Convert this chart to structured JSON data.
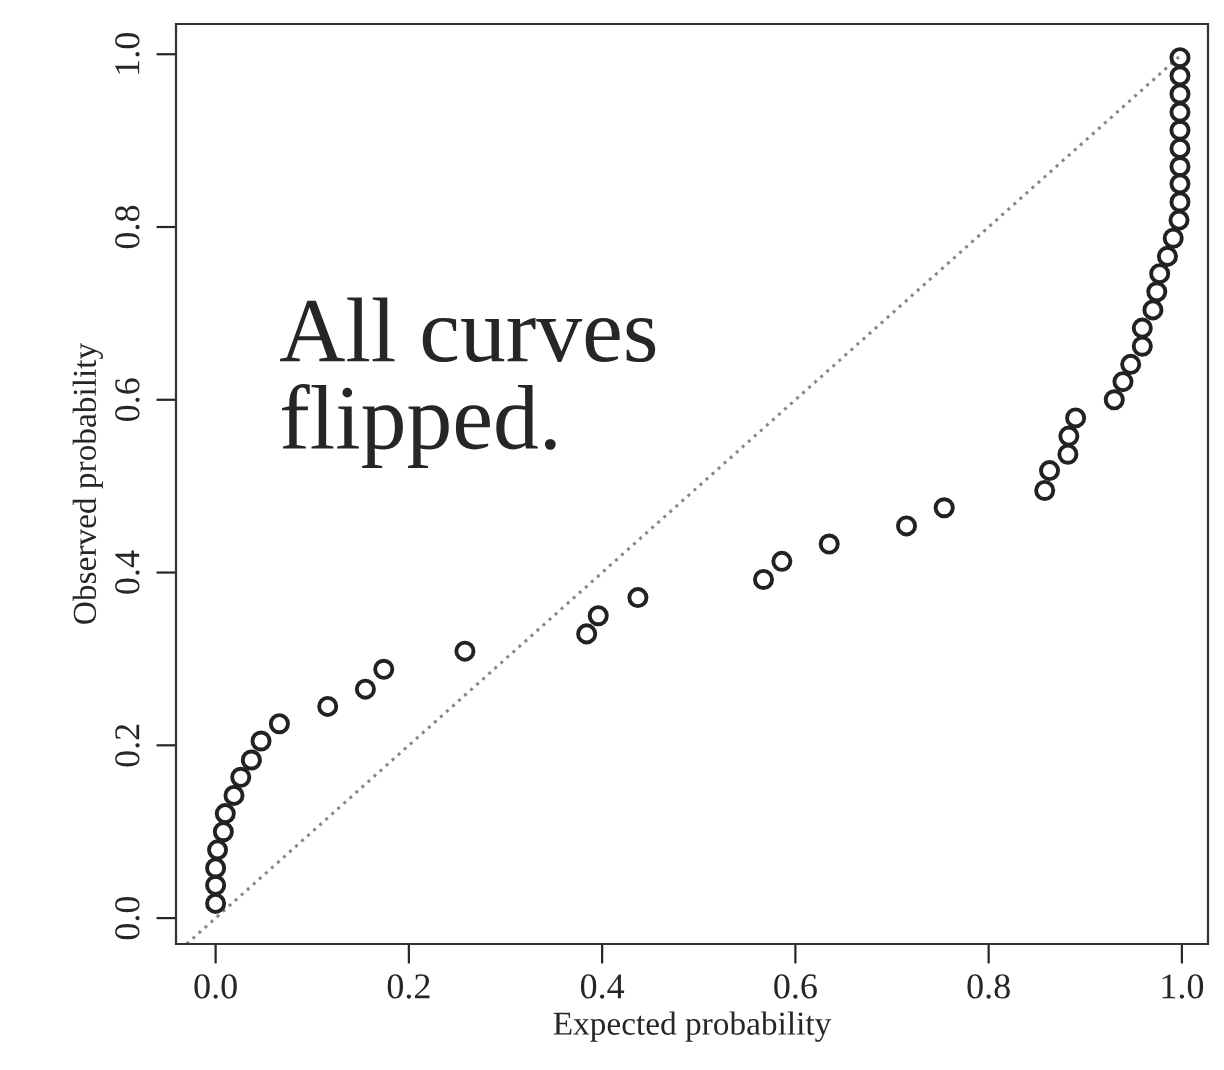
{
  "chart_data": {
    "type": "scatter",
    "xlabel": "Expected probability",
    "ylabel": "Observed probability",
    "xlim": [
      -0.041,
      1.027
    ],
    "ylim": [
      -0.03,
      1.035
    ],
    "xticks": [
      {
        "value": 0,
        "label": "0.0"
      },
      0.2,
      0.4,
      0.6,
      0.8,
      {
        "value": 1,
        "label": "1.0"
      }
    ],
    "yticks": [
      {
        "value": 0,
        "label": "0.0"
      },
      0.2,
      0.4,
      0.6,
      0.8,
      {
        "value": 1,
        "label": "1.0"
      }
    ],
    "series": [
      {
        "marker": "circle",
        "color": "#222222",
        "x": [
          0.0,
          0.0,
          0.0,
          0.002,
          0.008,
          0.01,
          0.019,
          0.026,
          0.037,
          0.047,
          0.066,
          0.116,
          0.155,
          0.174,
          0.258,
          0.384,
          0.396,
          0.437,
          0.567,
          0.586,
          0.635,
          0.715,
          0.754,
          0.858,
          0.863,
          0.882,
          0.883,
          0.89,
          0.93,
          0.939,
          0.947,
          0.959,
          0.959,
          0.97,
          0.974,
          0.977,
          0.985,
          0.991,
          0.997,
          0.998,
          0.998,
          0.998,
          0.998,
          0.998,
          0.998,
          0.998,
          0.998,
          0.998
        ],
        "values": [
          0.017,
          0.038,
          0.058,
          0.079,
          0.1,
          0.121,
          0.142,
          0.163,
          0.183,
          0.205,
          0.225,
          0.245,
          0.265,
          0.288,
          0.309,
          0.329,
          0.35,
          0.371,
          0.392,
          0.413,
          0.433,
          0.454,
          0.475,
          0.495,
          0.518,
          0.537,
          0.558,
          0.579,
          0.6,
          0.621,
          0.641,
          0.662,
          0.683,
          0.704,
          0.725,
          0.746,
          0.766,
          0.787,
          0.808,
          0.829,
          0.85,
          0.87,
          0.891,
          0.912,
          0.933,
          0.954,
          0.975,
          0.996
        ]
      },
      {
        "type": "line",
        "color": "#888888",
        "line_style": "dotted",
        "x": [
          -0.03,
          1.0
        ],
        "values": [
          -0.03,
          1.0
        ]
      }
    ],
    "annotations": [
      "All curves\nflipped."
    ]
  }
}
